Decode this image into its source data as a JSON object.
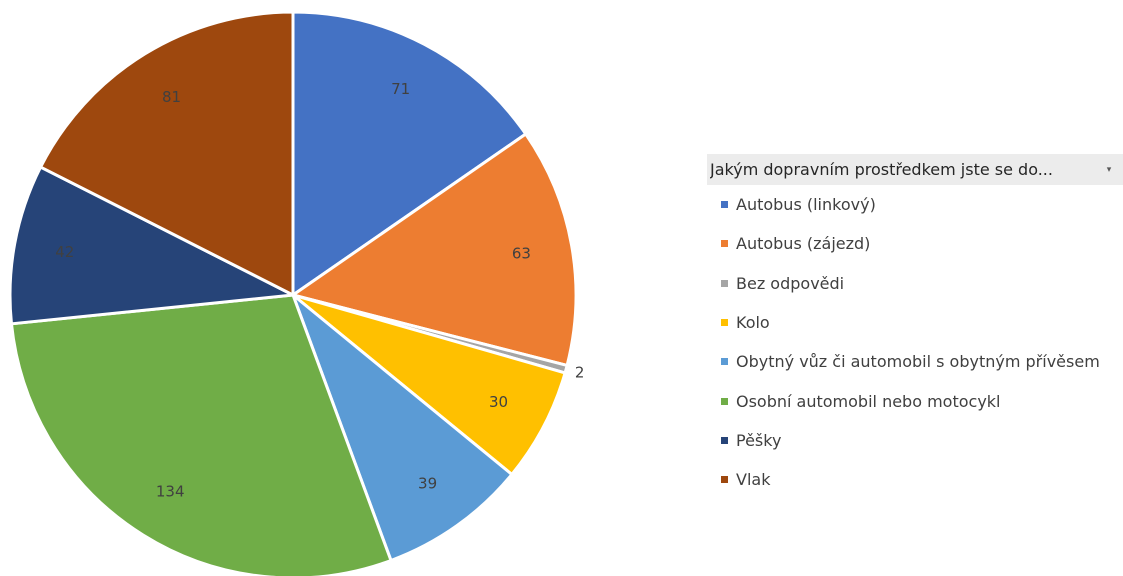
{
  "chart_data": {
    "type": "pie",
    "legend_position": "right",
    "legend_title": "Jakým dopravním prostředkem jste se do...",
    "filter_icon": "dropdown-arrow-icon",
    "slices": [
      {
        "name": "Autobus (linkový)",
        "value": 71,
        "label": "71",
        "color": "#4472c4"
      },
      {
        "name": "Autobus (zájezd)",
        "value": 63,
        "label": "63",
        "color": "#ed7d31"
      },
      {
        "name": "Bez odpovědi",
        "value": 2,
        "label": "2",
        "color": "#a5a5a5"
      },
      {
        "name": "Kolo",
        "value": 30,
        "label": "30",
        "color": "#ffc000"
      },
      {
        "name": "Obytný vůz či automobil s obytným přívěsem",
        "value": 39,
        "label": "39",
        "color": "#5b9bd5"
      },
      {
        "name": "Osobní automobil nebo motocykl",
        "value": 134,
        "label": "134",
        "color": "#70ad47"
      },
      {
        "name": "Pěšky",
        "value": 42,
        "label": "42",
        "color": "#264478"
      },
      {
        "name": "Vlak",
        "value": 81,
        "label": "81",
        "color": "#9e480e"
      }
    ]
  }
}
